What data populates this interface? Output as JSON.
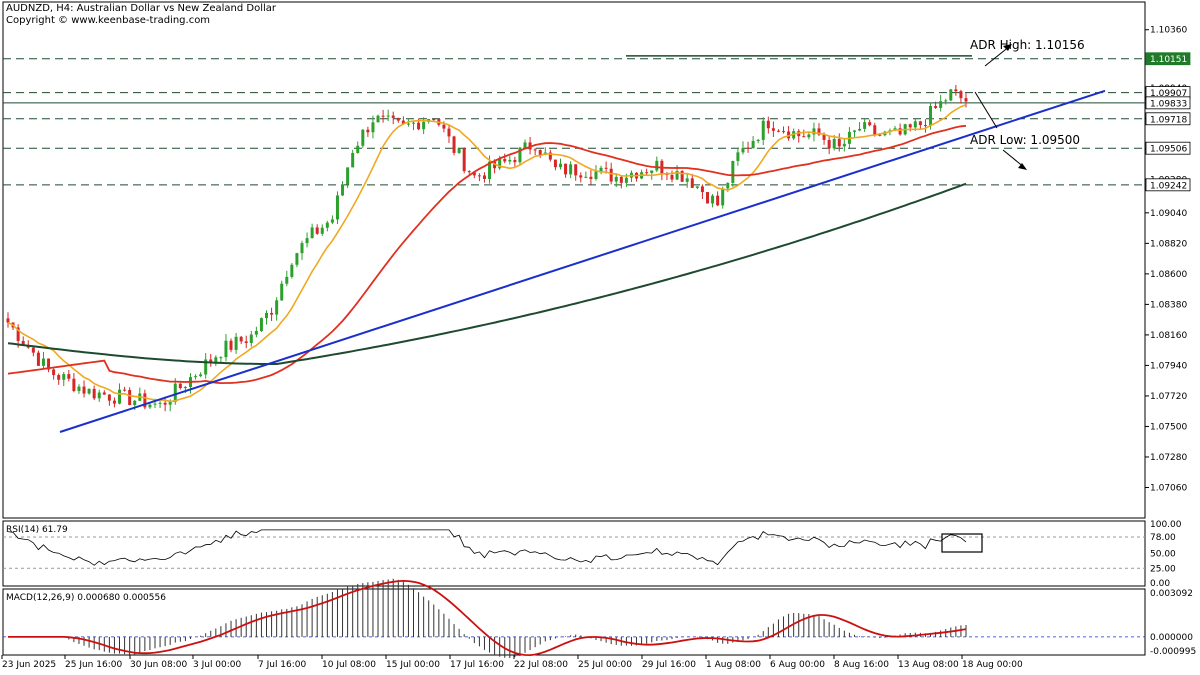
{
  "header": {
    "title": "AUDNZD, H4:  Australian Dollar vs New Zealand Dollar",
    "copyright": "Copyright © www.keenbase-trading.com"
  },
  "colors": {
    "bull": "#2ca02c",
    "bear": "#d62728",
    "ma_fast": "#f0a820",
    "ma_mid": "#e03020",
    "ma_slow": "#1e4a30",
    "trend": "#1a2fcc",
    "level": "#1e4a30",
    "badge": "#1f7a2a"
  },
  "chart_data": [
    {
      "type": "candlestick",
      "price_range": [
        1.069,
        1.1036
      ],
      "x_labels": [
        "23 Jun 2025",
        "25 Jun 16:00",
        "30 Jun 08:00",
        "3 Jul 00:00",
        "7 Jul 16:00",
        "10 Jul 08:00",
        "15 Jul 00:00",
        "17 Jul 16:00",
        "22 Jul 08:00",
        "25 Jul 00:00",
        "29 Jul 16:00",
        "1 Aug 08:00",
        "6 Aug 00:00",
        "8 Aug 16:00",
        "13 Aug 08:00",
        "18 Aug 00:00"
      ],
      "y_ticks": [
        "1.10360",
        "1.09940",
        "1.09720",
        "1.09500",
        "1.09280",
        "1.09040",
        "1.08820",
        "1.08600",
        "1.08380",
        "1.08160",
        "1.07940",
        "1.07720",
        "1.07500",
        "1.07280",
        "1.07060"
      ],
      "horizontal_levels": [
        {
          "label": "1.10151",
          "value": 1.10151,
          "style": "dashed",
          "badge": true
        },
        {
          "label": "1.09907",
          "value": 1.09907,
          "style": "dashed"
        },
        {
          "label": "1.09833",
          "value": 1.09833,
          "style": "solid"
        },
        {
          "label": "1.09718",
          "value": 1.09718,
          "style": "dashed"
        },
        {
          "label": "1.09506",
          "value": 1.09506,
          "style": "dashed"
        },
        {
          "label": "1.09242",
          "value": 1.09242,
          "style": "dashed"
        }
      ],
      "annotations": [
        {
          "text": "ADR High: 1.10156",
          "value": 1.10156
        },
        {
          "text": "ADR Low: 1.09500",
          "value": 1.095
        }
      ],
      "moving_averages": [
        "fast",
        "mid",
        "slow"
      ],
      "trendline": {
        "from_price": 1.0746,
        "to_price": 1.0992
      }
    },
    {
      "type": "line",
      "title": "RSI(14) 61.79",
      "y_ticks": [
        "100.00",
        "78.00",
        "50.00",
        "25.00",
        "0.00"
      ],
      "ylim": [
        0,
        100
      ]
    },
    {
      "type": "histogram",
      "title": "MACD(12,26,9) 0.000680 0.000556",
      "y_ticks": [
        "0.003092",
        "0.000000",
        "-0.000995"
      ],
      "ylim": [
        -0.000995,
        0.003092
      ]
    }
  ]
}
